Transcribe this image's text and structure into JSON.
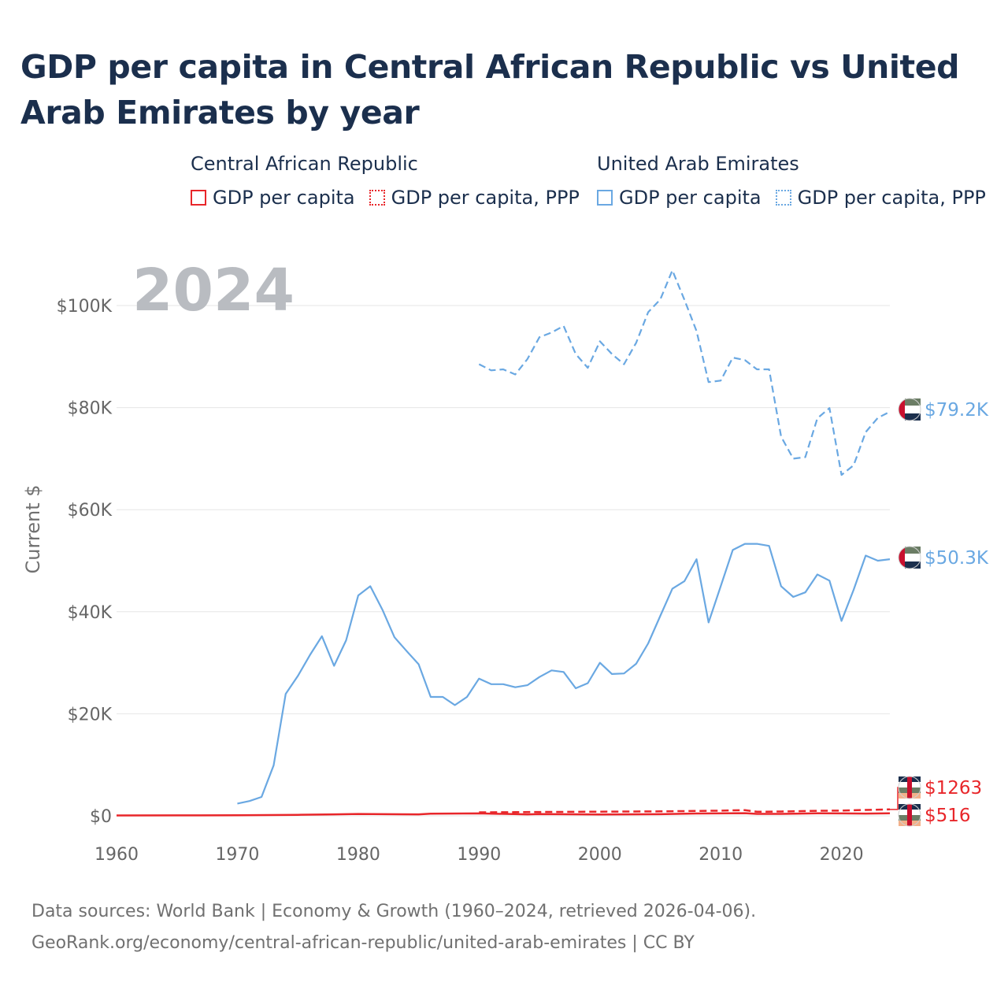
{
  "title": "GDP per capita in Central African Republic vs United Arab Emirates by year",
  "legend": {
    "groups": [
      {
        "country": "Central African Republic",
        "color": "#e8262a",
        "items": [
          {
            "label": "GDP per capita",
            "style": "solid"
          },
          {
            "label": "GDP per capita, PPP",
            "style": "dotted"
          }
        ]
      },
      {
        "country": "United Arab Emirates",
        "color": "#6aa8e2",
        "items": [
          {
            "label": "GDP per capita",
            "style": "solid"
          },
          {
            "label": "GDP per capita, PPP",
            "style": "dotted"
          }
        ]
      }
    ]
  },
  "year_badge": "2024",
  "footer": {
    "line1": "Data sources: World Bank | Economy & Growth (1960–2024, retrieved 2026-04-06).",
    "line2": "GeoRank.org/economy/central-african-republic/united-arab-emirates | CC BY"
  },
  "chart_data": {
    "type": "line",
    "title": "GDP per capita in Central African Republic vs United Arab Emirates by year",
    "xlabel": "",
    "ylabel": "Current $",
    "xlim": [
      1960,
      2024
    ],
    "ylim": [
      0,
      110000
    ],
    "x_ticks": [
      1960,
      1970,
      1980,
      1990,
      2000,
      2010,
      2020
    ],
    "x_tick_labels": [
      "1960",
      "1970",
      "1980",
      "1990",
      "2000",
      "2010",
      "2020"
    ],
    "y_ticks": [
      0,
      20000,
      40000,
      60000,
      80000,
      100000
    ],
    "y_tick_labels": [
      "$0",
      "$20K",
      "$40K",
      "$60K",
      "$80K",
      "$100K"
    ],
    "grid": true,
    "series": [
      {
        "name": "United Arab Emirates — GDP per capita, PPP",
        "color": "#6aa8e2",
        "dash": "dashed",
        "end_label": "$79.2K",
        "points": [
          [
            1990,
            88500
          ],
          [
            1991,
            87300
          ],
          [
            1992,
            87500
          ],
          [
            1993,
            86500
          ],
          [
            1994,
            89500
          ],
          [
            1995,
            93800
          ],
          [
            1996,
            94700
          ],
          [
            1997,
            96000
          ],
          [
            1998,
            90500
          ],
          [
            1999,
            87800
          ],
          [
            2000,
            93000
          ],
          [
            2001,
            90500
          ],
          [
            2002,
            88500
          ],
          [
            2003,
            92700
          ],
          [
            2004,
            98700
          ],
          [
            2005,
            101200
          ],
          [
            2006,
            106900
          ],
          [
            2007,
            101100
          ],
          [
            2008,
            95000
          ],
          [
            2009,
            85000
          ],
          [
            2010,
            85300
          ],
          [
            2011,
            89800
          ],
          [
            2012,
            89300
          ],
          [
            2013,
            87500
          ],
          [
            2014,
            87500
          ],
          [
            2015,
            74300
          ],
          [
            2016,
            70000
          ],
          [
            2017,
            70300
          ],
          [
            2018,
            77900
          ],
          [
            2019,
            79900
          ],
          [
            2020,
            66800
          ],
          [
            2021,
            68700
          ],
          [
            2022,
            75200
          ],
          [
            2023,
            78000
          ],
          [
            2024,
            79200
          ]
        ]
      },
      {
        "name": "United Arab Emirates — GDP per capita",
        "color": "#6aa8e2",
        "dash": "solid",
        "end_label": "$50.3K",
        "points": [
          [
            1970,
            2400
          ],
          [
            1971,
            2900
          ],
          [
            1972,
            3700
          ],
          [
            1973,
            9900
          ],
          [
            1974,
            23900
          ],
          [
            1975,
            27400
          ],
          [
            1976,
            31500
          ],
          [
            1977,
            35200
          ],
          [
            1978,
            29400
          ],
          [
            1979,
            34400
          ],
          [
            1980,
            43200
          ],
          [
            1981,
            45000
          ],
          [
            1982,
            40400
          ],
          [
            1983,
            35000
          ],
          [
            1984,
            32300
          ],
          [
            1985,
            29700
          ],
          [
            1986,
            23300
          ],
          [
            1987,
            23300
          ],
          [
            1988,
            21700
          ],
          [
            1989,
            23300
          ],
          [
            1990,
            26900
          ],
          [
            1991,
            25800
          ],
          [
            1992,
            25800
          ],
          [
            1993,
            25200
          ],
          [
            1994,
            25600
          ],
          [
            1995,
            27200
          ],
          [
            1996,
            28500
          ],
          [
            1997,
            28200
          ],
          [
            1998,
            25000
          ],
          [
            1999,
            26000
          ],
          [
            2000,
            30000
          ],
          [
            2001,
            27800
          ],
          [
            2002,
            27900
          ],
          [
            2003,
            29800
          ],
          [
            2004,
            33800
          ],
          [
            2005,
            39200
          ],
          [
            2006,
            44500
          ],
          [
            2007,
            46000
          ],
          [
            2008,
            50300
          ],
          [
            2009,
            37900
          ],
          [
            2010,
            45000
          ],
          [
            2011,
            52100
          ],
          [
            2012,
            53300
          ],
          [
            2013,
            53300
          ],
          [
            2014,
            52900
          ],
          [
            2015,
            45000
          ],
          [
            2016,
            42900
          ],
          [
            2017,
            43800
          ],
          [
            2018,
            47300
          ],
          [
            2019,
            46100
          ],
          [
            2020,
            38200
          ],
          [
            2021,
            44300
          ],
          [
            2022,
            51000
          ],
          [
            2023,
            50000
          ],
          [
            2024,
            50300
          ]
        ]
      },
      {
        "name": "Central African Republic — GDP per capita, PPP",
        "color": "#e8262a",
        "dash": "dashed",
        "end_label": "$1263",
        "points": [
          [
            1990,
            700
          ],
          [
            1993,
            720
          ],
          [
            1995,
            760
          ],
          [
            2000,
            820
          ],
          [
            2005,
            880
          ],
          [
            2010,
            1020
          ],
          [
            2012,
            1120
          ],
          [
            2013,
            800
          ],
          [
            2015,
            850
          ],
          [
            2018,
            980
          ],
          [
            2020,
            1030
          ],
          [
            2022,
            1150
          ],
          [
            2024,
            1263
          ]
        ]
      },
      {
        "name": "Central African Republic — GDP per capita",
        "color": "#e8262a",
        "dash": "solid",
        "end_label": "$516",
        "points": [
          [
            1960,
            70
          ],
          [
            1965,
            90
          ],
          [
            1970,
            110
          ],
          [
            1975,
            200
          ],
          [
            1978,
            300
          ],
          [
            1980,
            370
          ],
          [
            1985,
            300
          ],
          [
            1986,
            420
          ],
          [
            1990,
            480
          ],
          [
            1994,
            300
          ],
          [
            1995,
            360
          ],
          [
            2000,
            260
          ],
          [
            2005,
            330
          ],
          [
            2008,
            460
          ],
          [
            2012,
            520
          ],
          [
            2013,
            380
          ],
          [
            2015,
            390
          ],
          [
            2018,
            490
          ],
          [
            2020,
            480
          ],
          [
            2022,
            440
          ],
          [
            2024,
            516
          ]
        ]
      }
    ]
  }
}
